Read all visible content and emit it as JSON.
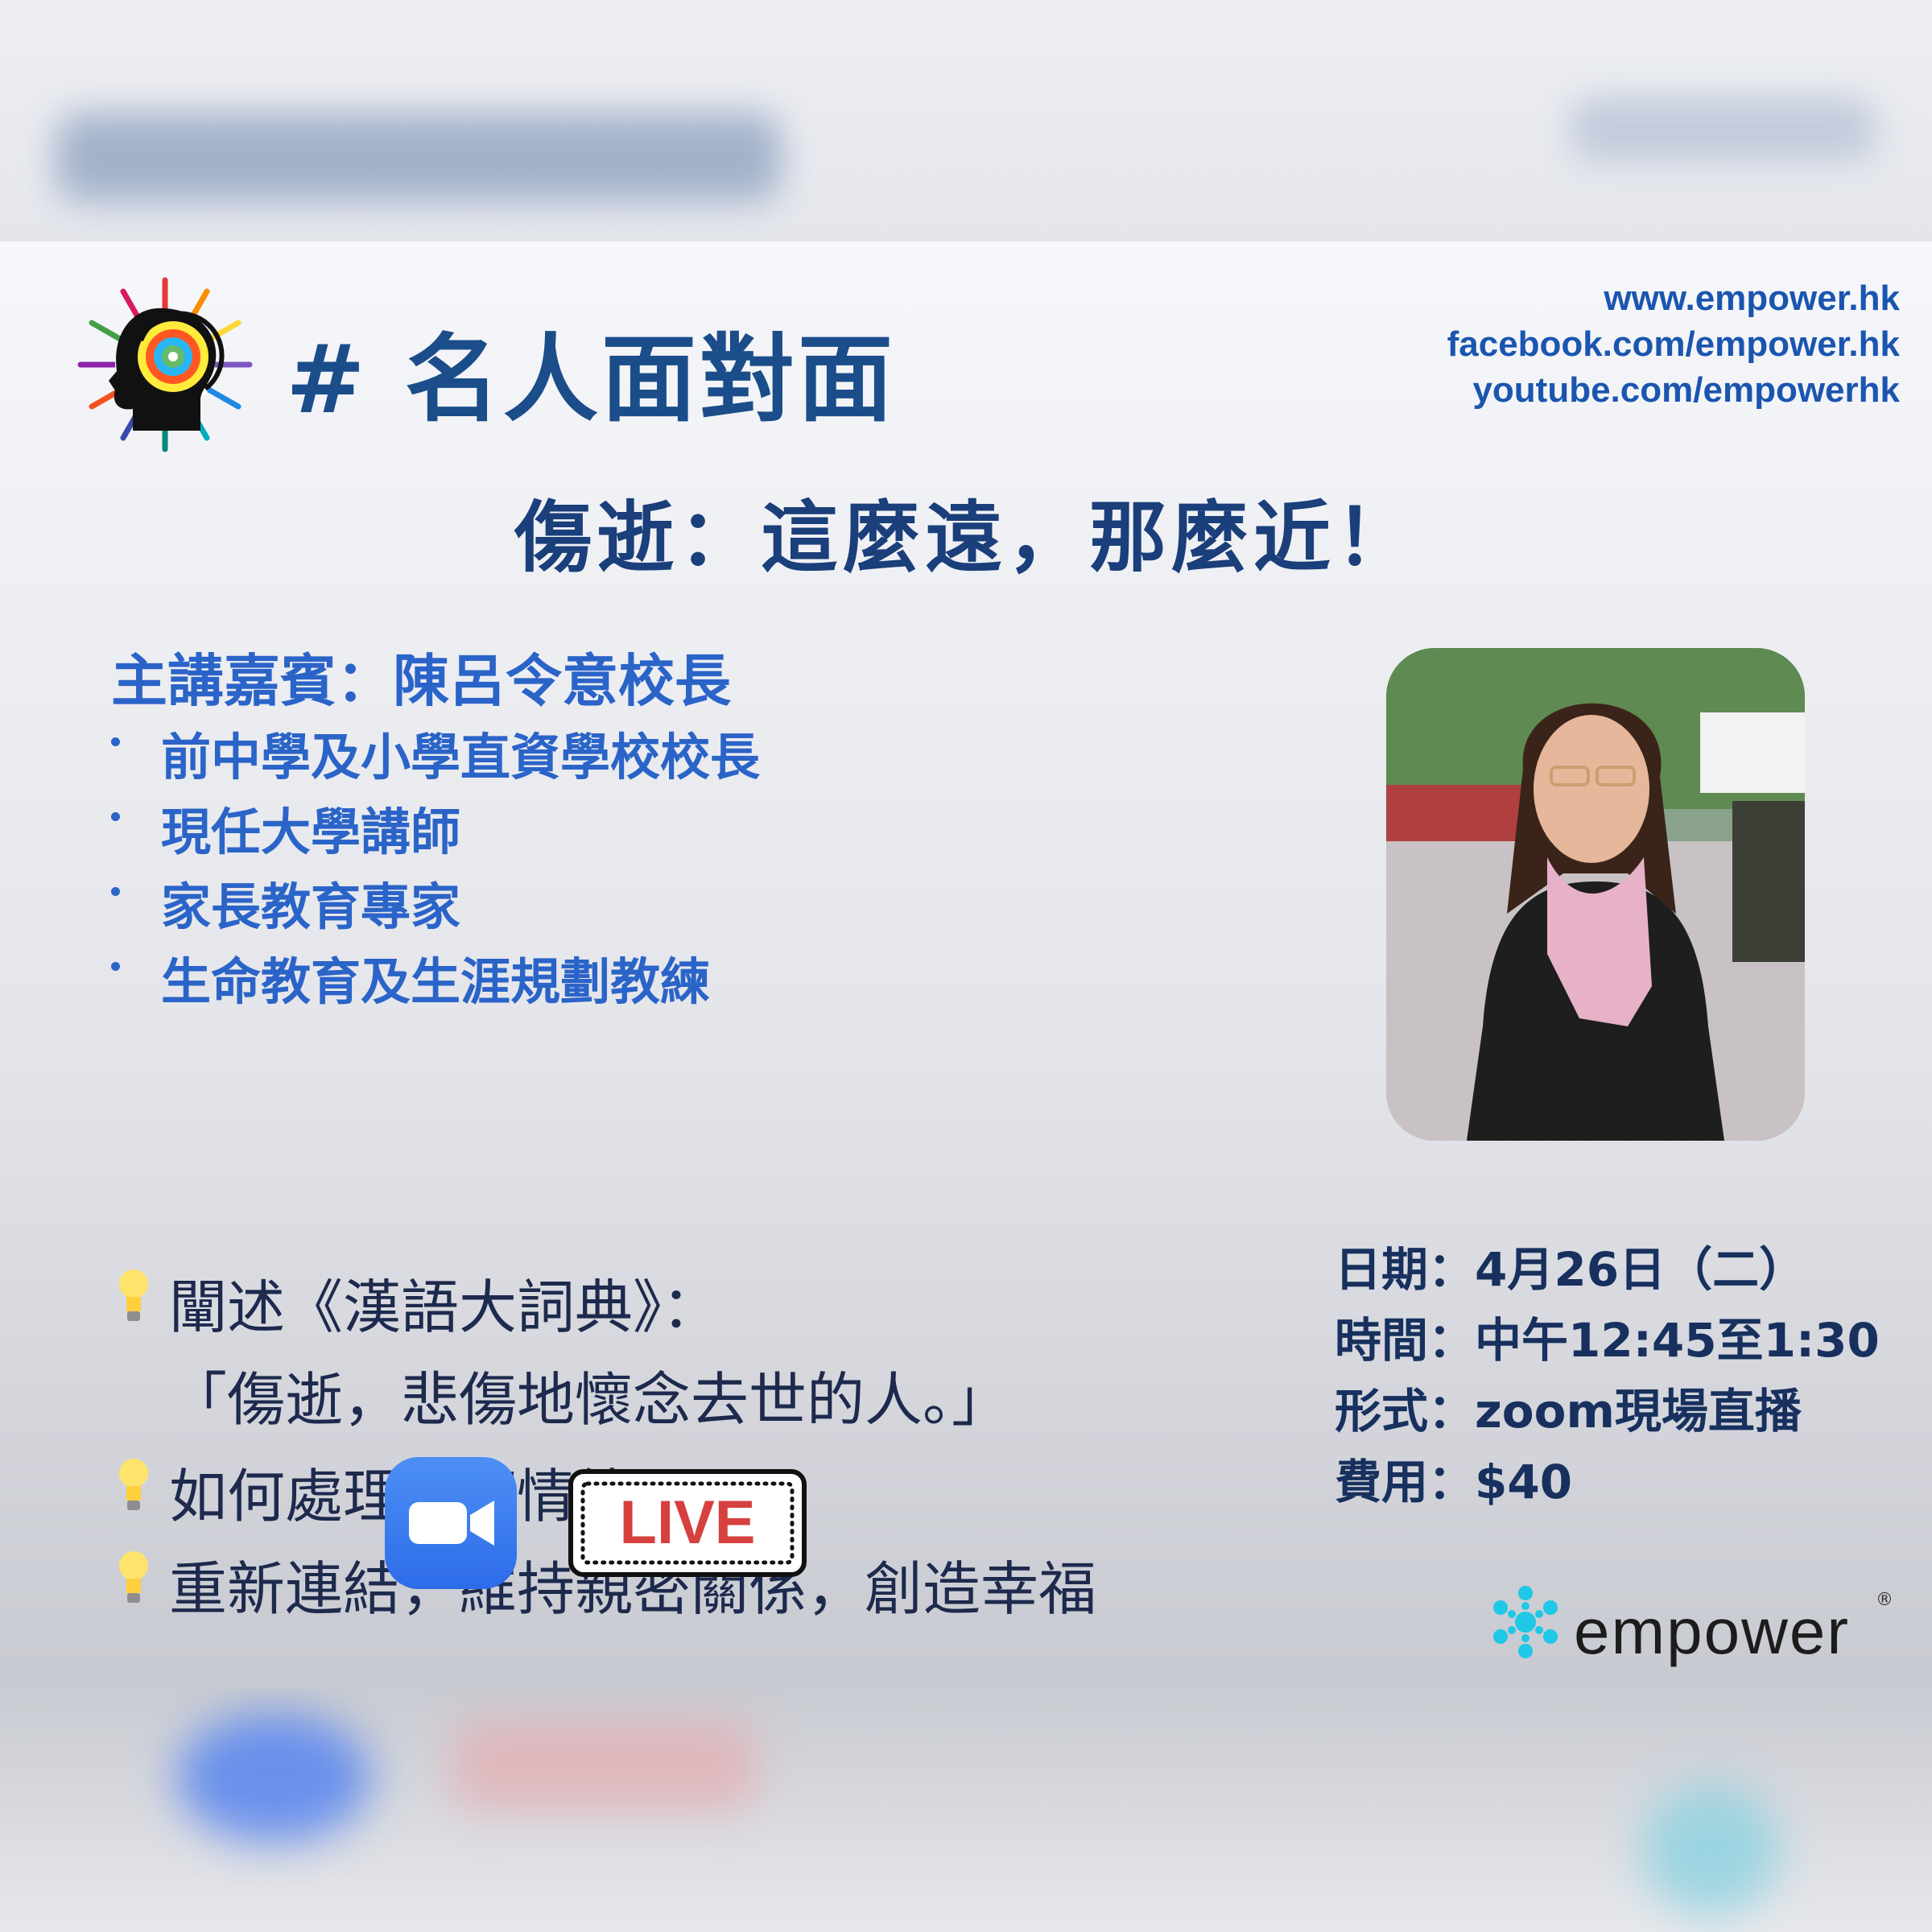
{
  "program": {
    "title": "# 名人面對面"
  },
  "links": [
    "www.empower.hk",
    "facebook.com/empower.hk",
    "youtube.com/empowerhk"
  ],
  "headline": "傷逝：這麼遠，那麼近！",
  "guest": {
    "heading": "主講嘉賓：陳呂令意校長",
    "credentials": [
      "前中學及小學直資學校校長",
      "現任大學講師",
      "家長教育專家",
      "生命教育及生涯規劃教練"
    ]
  },
  "points": {
    "p1": "闡述《漢語大詞典》：",
    "p1_quote": "「傷逝，悲傷地懷念去世的人。」",
    "p2": "如何處理負面情緒",
    "p3": "重新連結，維持親密關係，創造幸福"
  },
  "live_label": "LIVE",
  "details": [
    "日期：4月26日（二）",
    "時間：中午12:45至1:30",
    "形式：zoom現場直播",
    "費用：$40"
  ],
  "brand": {
    "name": "empower",
    "reg": "®"
  },
  "colors": {
    "title": "#1b4d8a",
    "accent_blue": "#2b64c8",
    "link": "#1a55b0",
    "live_red": "#d6403f",
    "zoom": "#2d6ce9",
    "brand_cyan": "#1ec8e6"
  }
}
